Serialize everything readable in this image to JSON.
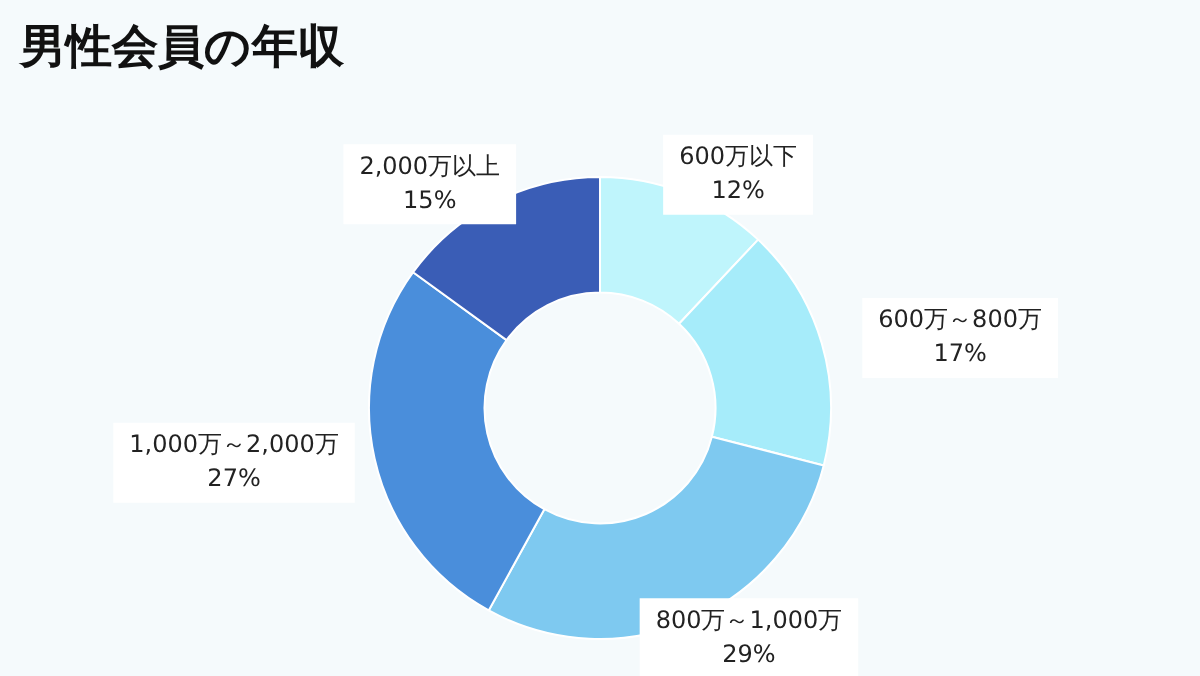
{
  "chart_data": {
    "type": "donut",
    "title": "男性会員の年収",
    "categories": [
      "600万以下",
      "600万～800万",
      "800万～1,000万",
      "1,000万～2,000万",
      "2,000万以上"
    ],
    "values": [
      12,
      17,
      29,
      27,
      15
    ],
    "value_labels": [
      "12%",
      "17%",
      "29%",
      "27%",
      "15%"
    ],
    "colors": [
      "#bff5fc",
      "#a6ecfa",
      "#7ec9f0",
      "#4a8edb",
      "#3a5db6"
    ],
    "legend": false
  }
}
